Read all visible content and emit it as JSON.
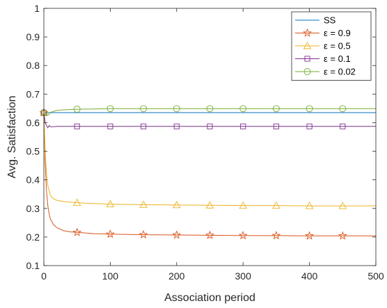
{
  "chart_data": {
    "type": "line",
    "title": "",
    "xlabel": "Association period",
    "ylabel": "Avg. Satisfaction",
    "xlim": [
      0,
      500
    ],
    "ylim": [
      0.1,
      1
    ],
    "xticks": [
      "0",
      "100",
      "200",
      "300",
      "400",
      "500"
    ],
    "yticks": [
      "0.1",
      "0.2",
      "0.3",
      "0.4",
      "0.5",
      "0.6",
      "0.7",
      "0.8",
      "0.9",
      "1"
    ],
    "grid": false,
    "legend_position": "top-right",
    "series": [
      {
        "name": "SS",
        "color": "#0072BD",
        "marker": "none",
        "x": [
          0,
          500
        ],
        "y": [
          0.635,
          0.635
        ]
      },
      {
        "name": "ε = 0.9",
        "color": "#D95319",
        "marker": "star",
        "x": [
          0,
          2,
          4,
          6,
          8,
          10,
          15,
          20,
          30,
          40,
          50,
          75,
          100,
          150,
          200,
          250,
          300,
          350,
          400,
          450,
          500
        ],
        "y": [
          0.635,
          0.46,
          0.36,
          0.31,
          0.28,
          0.262,
          0.242,
          0.232,
          0.222,
          0.218,
          0.216,
          0.212,
          0.21,
          0.208,
          0.207,
          0.206,
          0.205,
          0.205,
          0.204,
          0.204,
          0.204
        ],
        "marker_x": [
          50,
          100,
          150,
          200,
          250,
          300,
          350,
          400,
          450
        ]
      },
      {
        "name": "ε = 0.5",
        "color": "#EDB120",
        "marker": "triangle",
        "x": [
          0,
          2,
          4,
          6,
          8,
          10,
          15,
          20,
          30,
          40,
          50,
          75,
          100,
          150,
          200,
          250,
          300,
          350,
          400,
          450,
          500
        ],
        "y": [
          0.635,
          0.5,
          0.42,
          0.38,
          0.36,
          0.345,
          0.333,
          0.328,
          0.324,
          0.322,
          0.32,
          0.317,
          0.315,
          0.313,
          0.312,
          0.311,
          0.31,
          0.31,
          0.309,
          0.309,
          0.309
        ],
        "marker_x": [
          50,
          100,
          150,
          200,
          250,
          300,
          350,
          400,
          450
        ]
      },
      {
        "name": "ε = 0.1",
        "color": "#7E2F8E",
        "marker": "square",
        "x": [
          0,
          2,
          4,
          6,
          8,
          10,
          15,
          20,
          30,
          50,
          100,
          200,
          300,
          400,
          500
        ],
        "y": [
          0.635,
          0.6,
          0.59,
          0.582,
          0.59,
          0.586,
          0.586,
          0.587,
          0.587,
          0.587,
          0.587,
          0.587,
          0.587,
          0.587,
          0.587
        ],
        "marker_x": [
          50,
          100,
          150,
          200,
          250,
          300,
          350,
          400,
          450
        ]
      },
      {
        "name": "ε = 0.02",
        "color": "#77AC30",
        "marker": "circle",
        "x": [
          0,
          2,
          4,
          6,
          8,
          10,
          15,
          20,
          30,
          40,
          50,
          75,
          100,
          150,
          200,
          300,
          400,
          500
        ],
        "y": [
          0.635,
          0.635,
          0.628,
          0.626,
          0.63,
          0.636,
          0.64,
          0.643,
          0.645,
          0.646,
          0.647,
          0.648,
          0.649,
          0.649,
          0.649,
          0.649,
          0.649,
          0.649
        ],
        "marker_x": [
          50,
          100,
          150,
          200,
          250,
          300,
          350,
          400,
          450
        ]
      }
    ]
  }
}
